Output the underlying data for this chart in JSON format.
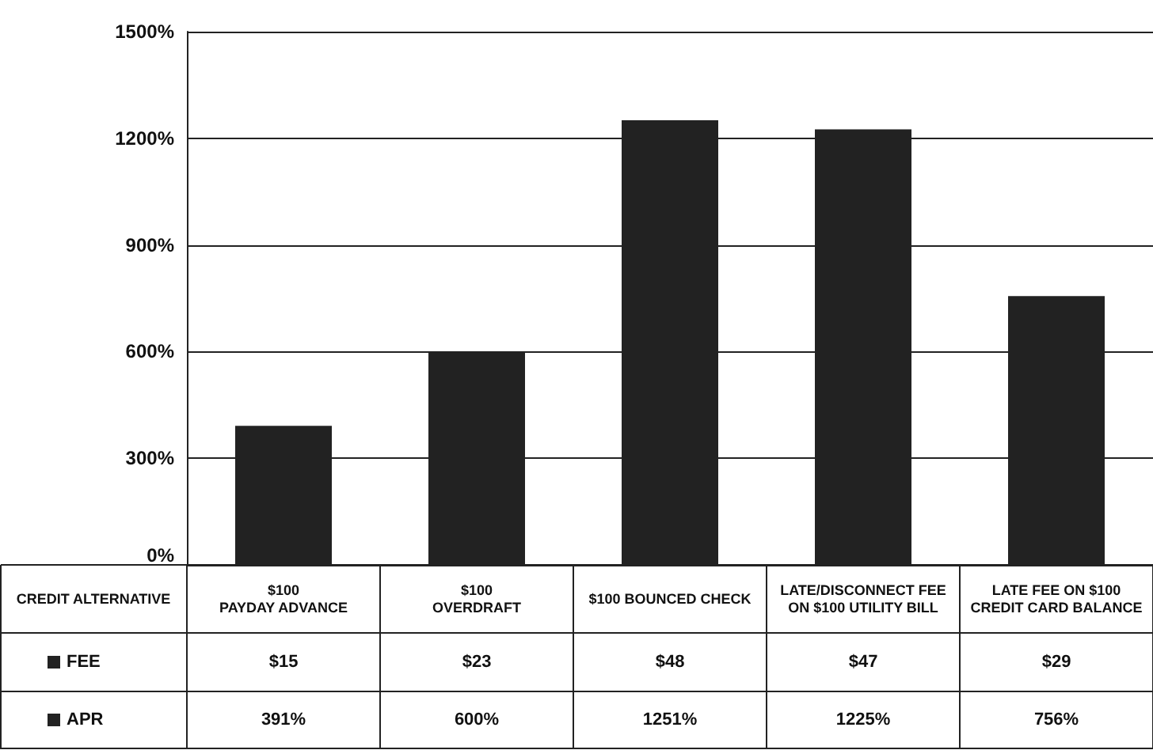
{
  "chart_data": {
    "type": "bar",
    "xlabel": "CREDIT ALTERNATIVE",
    "categories": [
      "$100\nPAYDAY ADVANCE",
      "$100\nOVERDRAFT",
      "$100 BOUNCED CHECK",
      "LATE/DISCONNECT FEE\nON $100 UTILITY BILL",
      "LATE FEE ON $100\nCREDIT CARD BALANCE"
    ],
    "series": [
      {
        "name": "APR",
        "color": "#222222",
        "values": [
          391,
          600,
          1251,
          1225,
          756
        ],
        "value_labels": [
          "391%",
          "600%",
          "1251%",
          "1225%",
          "756%"
        ]
      }
    ],
    "annotations": [
      "FEE",
      "$15",
      "$23",
      "$48",
      "$47",
      "$29"
    ],
    "ylim": [
      0,
      1500
    ],
    "yticks": [
      {
        "value": 0,
        "label": "0%"
      },
      {
        "value": 300,
        "label": "300%"
      },
      {
        "value": 600,
        "label": "600%"
      },
      {
        "value": 900,
        "label": "900%"
      },
      {
        "value": 1200,
        "label": "1200%"
      },
      {
        "value": 1500,
        "label": "1500%"
      }
    ],
    "grid": "y"
  }
}
